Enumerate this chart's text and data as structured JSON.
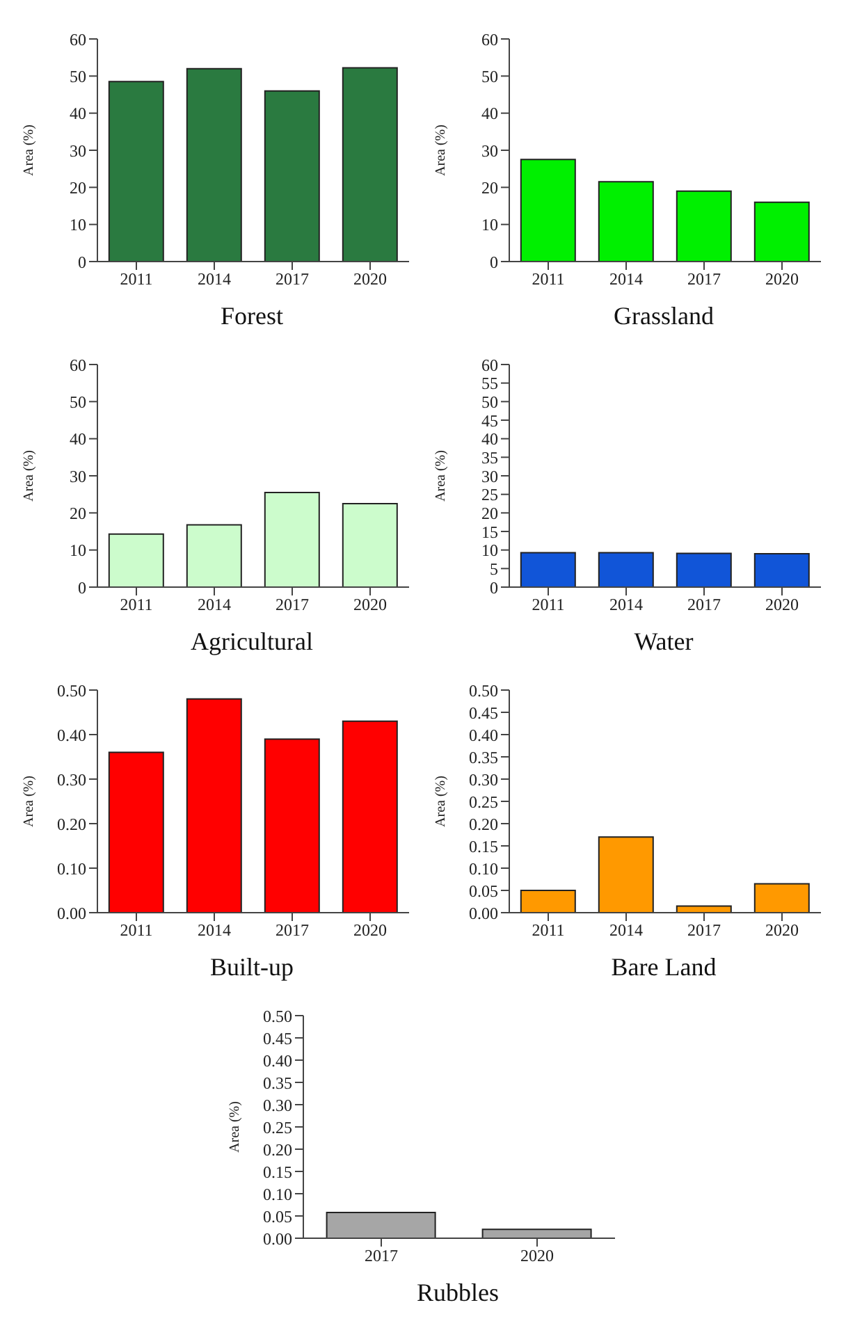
{
  "chart_data": [
    {
      "type": "bar",
      "xlabel": "Forest",
      "ylabel": "Area (%)",
      "categories": [
        "2011",
        "2014",
        "2017",
        "2020"
      ],
      "values": [
        48.5,
        52,
        46,
        52.2
      ],
      "color": "#2a7a40",
      "ylim": [
        0,
        60
      ],
      "yticks": [
        0,
        10,
        20,
        30,
        40,
        50,
        60
      ],
      "grid": false,
      "legend": false
    },
    {
      "type": "bar",
      "xlabel": "Grassland",
      "ylabel": "Area (%)",
      "categories": [
        "2011",
        "2014",
        "2017",
        "2020"
      ],
      "values": [
        27.5,
        21.5,
        19,
        16
      ],
      "color": "#00f000",
      "ylim": [
        0,
        60
      ],
      "yticks": [
        0,
        10,
        20,
        30,
        40,
        50,
        60
      ],
      "grid": false,
      "legend": false
    },
    {
      "type": "bar",
      "xlabel": "Agricultural",
      "ylabel": "Area (%)",
      "categories": [
        "2011",
        "2014",
        "2017",
        "2020"
      ],
      "values": [
        14.3,
        16.8,
        25.5,
        22.5
      ],
      "color": "#ccfccc",
      "ylim": [
        0,
        60
      ],
      "yticks": [
        0,
        10,
        20,
        30,
        40,
        50,
        60
      ],
      "grid": false,
      "legend": false
    },
    {
      "type": "bar",
      "xlabel": "Water",
      "ylabel": "Area (%)",
      "categories": [
        "2011",
        "2014",
        "2017",
        "2020"
      ],
      "values": [
        9.3,
        9.3,
        9.1,
        9
      ],
      "color": "#1155d8",
      "ylim": [
        0,
        60
      ],
      "yticks": [
        0,
        5,
        10,
        15,
        20,
        25,
        30,
        35,
        40,
        45,
        50,
        55,
        60
      ],
      "grid": false,
      "legend": false
    },
    {
      "type": "bar",
      "xlabel": "Built-up",
      "ylabel": "Area (%)",
      "categories": [
        "2011",
        "2014",
        "2017",
        "2020"
      ],
      "values": [
        0.36,
        0.48,
        0.39,
        0.43
      ],
      "color": "#ff0000",
      "ylim": [
        0,
        0.5
      ],
      "yticks": [
        {
          "value": 0,
          "label": "0.00"
        },
        {
          "value": 0.1,
          "label": "0.10"
        },
        {
          "value": 0.2,
          "label": "0.20"
        },
        {
          "value": 0.3,
          "label": "0.30"
        },
        {
          "value": 0.4,
          "label": "0.40"
        },
        {
          "value": 0.5,
          "label": "0.50"
        }
      ],
      "grid": false,
      "legend": false
    },
    {
      "type": "bar",
      "xlabel": "Bare Land",
      "ylabel": "Area (%)",
      "categories": [
        "2011",
        "2014",
        "2017",
        "2020"
      ],
      "values": [
        0.05,
        0.17,
        0.015,
        0.065
      ],
      "color": "#ff9900",
      "ylim": [
        0,
        0.5
      ],
      "yticks": [
        {
          "value": 0,
          "label": "0.00"
        },
        0.05,
        {
          "value": 0.1,
          "label": "0.10"
        },
        0.15,
        {
          "value": 0.2,
          "label": "0.20"
        },
        0.25,
        {
          "value": 0.3,
          "label": "0.30"
        },
        0.35,
        {
          "value": 0.4,
          "label": "0.40"
        },
        0.45,
        {
          "value": 0.5,
          "label": "0.50"
        }
      ],
      "grid": false,
      "legend": false
    },
    {
      "type": "bar",
      "xlabel": "Rubbles",
      "ylabel": "Area (%)",
      "categories": [
        "2017",
        "2020"
      ],
      "values": [
        0.058,
        0.02
      ],
      "color": "#a6a6a6",
      "ylim": [
        0,
        0.5
      ],
      "yticks": [
        {
          "value": 0,
          "label": "0.00"
        },
        0.05,
        {
          "value": 0.1,
          "label": "0.10"
        },
        0.15,
        {
          "value": 0.2,
          "label": "0.20"
        },
        0.25,
        {
          "value": 0.3,
          "label": "0.30"
        },
        0.35,
        {
          "value": 0.4,
          "label": "0.40"
        },
        0.45,
        {
          "value": 0.5,
          "label": "0.50"
        }
      ],
      "grid": false,
      "legend": false
    }
  ]
}
